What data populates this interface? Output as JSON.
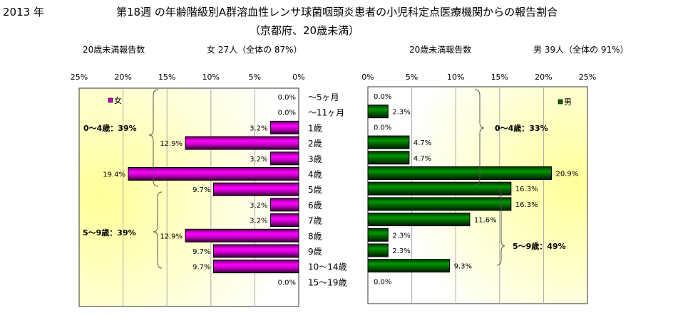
{
  "header": {
    "year": "2013 年",
    "title": "第18週 の年齢階級別A群溶血性レンサ球菌咽頭炎患者の小児科定点医療機関からの報告割合",
    "subtitle": "（京都府、20歳未満）",
    "female_count_label": "20歳未満報告数",
    "female_summary": "女  27人（全体の  87%）",
    "male_count_label": "20歳未満報告数",
    "male_summary": "男  39人（全体の  91%）"
  },
  "chart_data": [
    {
      "type": "bar",
      "orientation": "horizontal-reversed",
      "title": "女",
      "legend": "女",
      "legend_position": "top-left",
      "categories": [
        "～5ヶ月",
        "～11ヶ月",
        "1歳",
        "2歳",
        "3歳",
        "4歳",
        "5歳",
        "6歳",
        "7歳",
        "8歳",
        "9歳",
        "10～14歳",
        "15～19歳"
      ],
      "values": [
        0.0,
        0.0,
        3.2,
        12.9,
        3.2,
        19.4,
        9.7,
        3.2,
        3.2,
        12.9,
        9.7,
        9.7,
        0.0
      ],
      "value_labels": [
        "0.0%",
        "0.0%",
        "3.2%",
        "12.9%",
        "3.2%",
        "19.4%",
        "9.7%",
        "3.2%",
        "3.2%",
        "12.9%",
        "9.7%",
        "9.7%",
        "0.0%"
      ],
      "xlim": [
        0,
        25
      ],
      "ticks": [
        "25%",
        "20%",
        "15%",
        "10%",
        "5%",
        "0%"
      ],
      "color": "#cc00cc",
      "annotations": [
        "0～4歳：39%",
        "5～9歳：39%"
      ],
      "grid": true
    },
    {
      "type": "bar",
      "orientation": "horizontal",
      "title": "男",
      "legend": "男",
      "legend_position": "top-right",
      "categories": [
        "～5ヶ月",
        "～11ヶ月",
        "1歳",
        "2歳",
        "3歳",
        "4歳",
        "5歳",
        "6歳",
        "7歳",
        "8歳",
        "9歳",
        "10～14歳",
        "15～19歳"
      ],
      "values": [
        0.0,
        2.3,
        0.0,
        4.7,
        4.7,
        20.9,
        16.3,
        16.3,
        11.6,
        2.3,
        2.3,
        9.3,
        0.0
      ],
      "value_labels": [
        "0.0%",
        "2.3%",
        "0.0%",
        "4.7%",
        "4.7%",
        "20.9%",
        "16.3%",
        "16.3%",
        "11.6%",
        "2.3%",
        "2.3%",
        "9.3%",
        "0.0%"
      ],
      "xlim": [
        0,
        25
      ],
      "ticks": [
        "0%",
        "5%",
        "10%",
        "15%",
        "20%",
        "25%"
      ],
      "color": "#006600",
      "annotations": [
        "0～4歳：33%",
        "5～9歳：49%"
      ],
      "grid": true
    }
  ]
}
